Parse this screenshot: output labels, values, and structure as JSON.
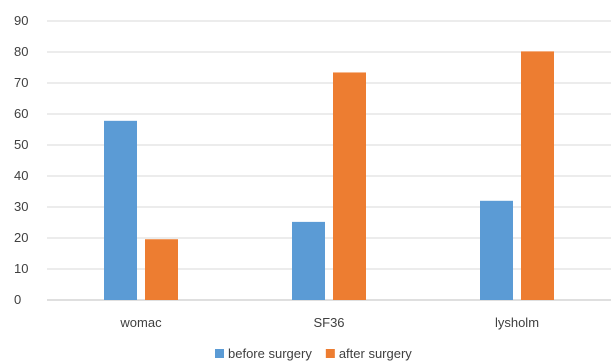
{
  "chart_data": {
    "type": "bar",
    "categories": [
      "womac",
      "SF36",
      "lysholm"
    ],
    "series": [
      {
        "name": "before surgery",
        "values": [
          57.8,
          25.2,
          32.0
        ],
        "color": "#5b9bd5"
      },
      {
        "name": "after surgery",
        "values": [
          19.6,
          73.4,
          80.2
        ],
        "color": "#ed7d31"
      }
    ],
    "ylim": [
      0,
      90
    ],
    "yticks": [
      0,
      10,
      20,
      30,
      40,
      50,
      60,
      70,
      80,
      90
    ],
    "grid": true,
    "legend": "bottom-center"
  }
}
